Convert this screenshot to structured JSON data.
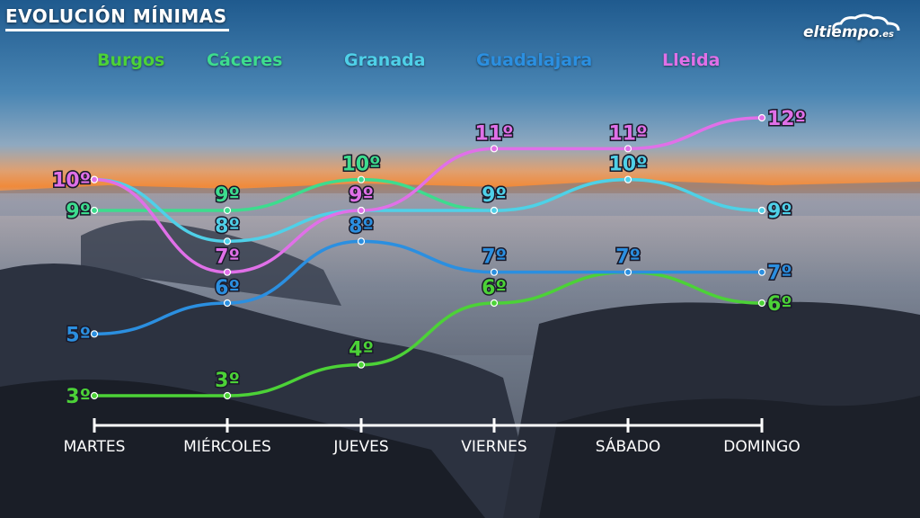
{
  "header": {
    "title": "EVOLUCIÓN MÍNIMAS",
    "logo_main": "eltiempo",
    "logo_suffix": ".es"
  },
  "chart_data": {
    "type": "line",
    "title": "EVOLUCIÓN MÍNIMAS",
    "xlabel": "",
    "ylabel": "",
    "x": [
      "MARTES",
      "MIÉRCOLES",
      "JUEVES",
      "VIERNES",
      "SÁBADO",
      "DOMINGO"
    ],
    "ylim": [
      3,
      12
    ],
    "grid": false,
    "legend": "top",
    "value_suffix": "º",
    "series": [
      {
        "name": "Burgos",
        "color": "#4cd237",
        "values": [
          3,
          3,
          4,
          6,
          7,
          6
        ]
      },
      {
        "name": "Cáceres",
        "color": "#3ddc8e",
        "values": [
          9,
          9,
          10,
          9,
          10,
          9
        ]
      },
      {
        "name": "Granada",
        "color": "#4fd0e8",
        "values": [
          10,
          8,
          9,
          9,
          10,
          9
        ]
      },
      {
        "name": "Guadalajara",
        "color": "#2b8fe0",
        "values": [
          5,
          6,
          8,
          7,
          7,
          7
        ]
      },
      {
        "name": "Lleida",
        "color": "#e070e8",
        "values": [
          10,
          7,
          9,
          11,
          11,
          12
        ]
      }
    ]
  }
}
